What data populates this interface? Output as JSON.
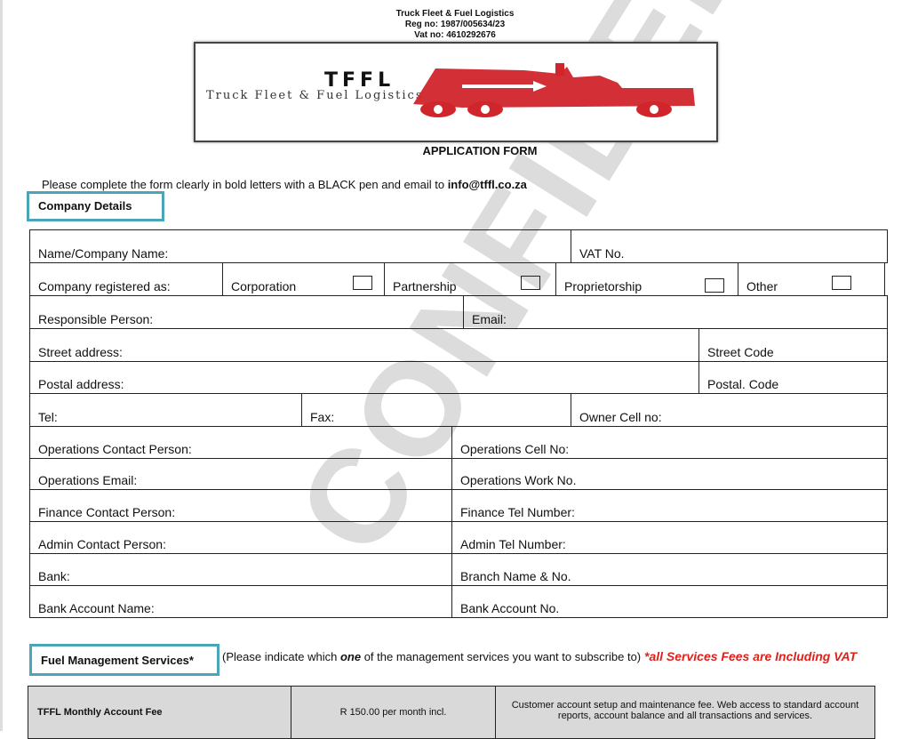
{
  "header": {
    "company": "Truck Fleet & Fuel Logistics",
    "reg": "Reg no: 1987/005634/23",
    "vat": "Vat no: 4610292676"
  },
  "logo": {
    "abbr": "TFFL",
    "name": "Truck Fleet & Fuel Logistics",
    "color": "#d0252b"
  },
  "title": "APPLICATION FORM",
  "intro": {
    "text": "Please complete the form clearly in bold letters with a BLACK pen and email to ",
    "email": "info@tffl.co.za"
  },
  "company_section": "Company Details",
  "fields": {
    "name": "Name/Company Name:",
    "vat": "VAT No.",
    "registered": "Company registered as:",
    "corporation": "Corporation",
    "partnership": "Partnership",
    "proprietorship": "Proprietorship",
    "other": "Other",
    "responsible": "Responsible Person:",
    "email": "Email:",
    "street": "Street address:",
    "street_code": "Street Code",
    "postal": "Postal address:",
    "postal_code": "Postal. Code",
    "tel": "Tel:",
    "fax": "Fax:",
    "owner_cell": "Owner Cell no:",
    "ops_contact": "Operations Contact Person:",
    "ops_cell": "Operations Cell No:",
    "ops_email": "Operations Email:",
    "ops_work": "Operations Work No.",
    "fin_contact": "Finance Contact Person:",
    "fin_tel": "Finance Tel Number:",
    "admin_contact": "Admin Contact Person:",
    "admin_tel": "Admin Tel Number:",
    "bank": "Bank:",
    "branch": "Branch Name & No.",
    "bank_acc_name": "Bank Account Name:",
    "bank_acc_no": "Bank Account No."
  },
  "fuel_section": "Fuel Management Services*",
  "fuel_note": {
    "pre": "(Please indicate which ",
    "one": "one",
    "post": " of the management services you want to subscribe to)",
    "vat": " *all Services Fees are Including VAT"
  },
  "fees": [
    {
      "name": "TFFL Monthly Account Fee",
      "price": "R 150.00 per month incl.",
      "desc": "Customer account setup and maintenance fee. Web access to standard account reports, account balance and all transactions and services."
    }
  ],
  "watermark": "CONFIDENTIAL"
}
